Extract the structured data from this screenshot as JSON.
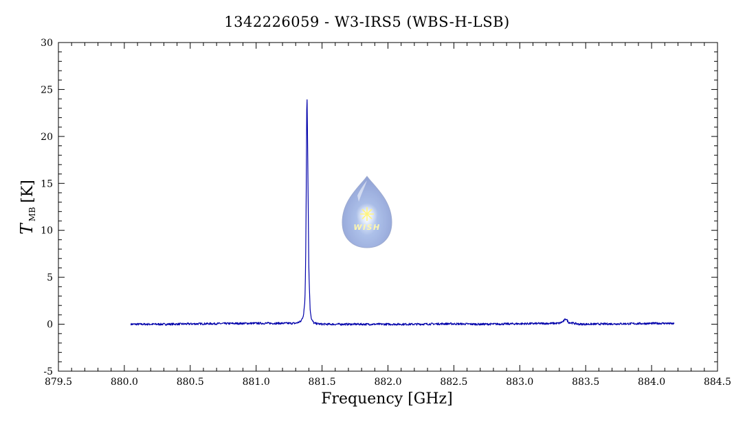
{
  "chart_data": {
    "type": "line",
    "title": "1342226059 - W3-IRS5 (WBS-H-LSB)",
    "xlabel": "Frequency [GHz]",
    "ylabel": {
      "symbol": "T",
      "subscript": "MB",
      "unit": "[K]"
    },
    "xlim": [
      879.5,
      884.5
    ],
    "ylim": [
      -5,
      30
    ],
    "x_ticks": [
      "879.5",
      "880.0",
      "880.5",
      "881.0",
      "881.5",
      "882.0",
      "882.5",
      "883.0",
      "883.5",
      "884.0",
      "884.5"
    ],
    "y_ticks": [
      "-5",
      "0",
      "5",
      "10",
      "15",
      "20",
      "25",
      "30"
    ],
    "grid": false,
    "line_color": "#0000aa",
    "series": [
      {
        "x": [
          880.05,
          880.3,
          880.6,
          881.0,
          881.3,
          881.34,
          881.36,
          881.37,
          881.375,
          881.38,
          881.385,
          881.39,
          881.395,
          881.4,
          881.41,
          881.42,
          881.44,
          881.5,
          881.8,
          882.2,
          882.45,
          882.7,
          883.0,
          883.3,
          883.33,
          883.35,
          883.37,
          883.45,
          883.8,
          884.1,
          884.17
        ],
        "y": [
          0.0,
          0.0,
          0.05,
          0.1,
          0.1,
          0.3,
          1.0,
          2.5,
          6.0,
          14.0,
          25.5,
          20.0,
          12.5,
          5.5,
          1.5,
          0.5,
          0.1,
          0.0,
          0.0,
          0.0,
          0.05,
          0.0,
          0.05,
          0.1,
          0.3,
          0.6,
          0.2,
          0.0,
          0.05,
          0.1,
          0.05
        ]
      }
    ]
  },
  "logo": {
    "text": "WISH"
  }
}
